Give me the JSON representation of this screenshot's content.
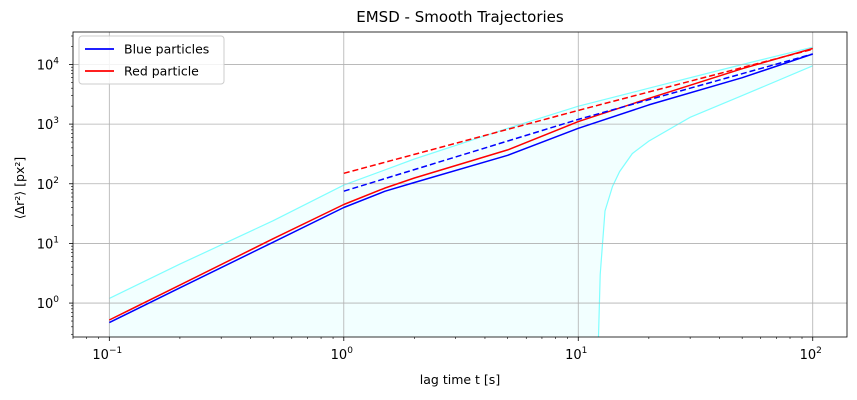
{
  "chart_data": {
    "type": "line",
    "title": "EMSD - Smooth Trajectories",
    "xlabel": "lag time t [s]",
    "ylabel": "⟨Δr²⟩ [px²]",
    "xscale": "log",
    "yscale": "log",
    "xlim": [
      0.07,
      140
    ],
    "ylim": [
      0.27,
      35000
    ],
    "x_ticks": [
      0.1,
      1,
      10,
      100
    ],
    "x_tick_labels": [
      {
        "base": "10",
        "exp": "−1"
      },
      {
        "base": "10",
        "exp": "0"
      },
      {
        "base": "10",
        "exp": "1"
      },
      {
        "base": "10",
        "exp": "2"
      }
    ],
    "y_ticks": [
      1,
      10,
      100,
      1000,
      10000
    ],
    "y_tick_labels": [
      {
        "base": "10",
        "exp": "0"
      },
      {
        "base": "10",
        "exp": "1"
      },
      {
        "base": "10",
        "exp": "2"
      },
      {
        "base": "10",
        "exp": "3"
      },
      {
        "base": "10",
        "exp": "4"
      }
    ],
    "grid": true,
    "legend_position": "top-left",
    "colors": {
      "blue": "#0000ff",
      "red": "#ff0000",
      "band": "#7fffff",
      "band_fill": "#f2ffff",
      "grid": "#b0b0b0"
    },
    "series": [
      {
        "name": "Blue particles",
        "color": "#0000ff",
        "style": "solid",
        "x": [
          0.1,
          0.2,
          0.5,
          1,
          1.5,
          2,
          5,
          10,
          20,
          50,
          100
        ],
        "y": [
          0.47,
          1.8,
          10.5,
          40,
          75,
          105,
          300,
          850,
          2100,
          6000,
          15000
        ]
      },
      {
        "name": "Red particle",
        "color": "#ff0000",
        "style": "solid",
        "x": [
          0.1,
          0.2,
          0.5,
          1,
          1.5,
          2,
          5,
          10,
          20,
          50,
          100
        ],
        "y": [
          0.52,
          2.0,
          12,
          45,
          85,
          125,
          370,
          1100,
          2700,
          8500,
          18500
        ]
      },
      {
        "color": "#0000ff",
        "style": "dashed",
        "x": [
          1,
          10,
          100
        ],
        "y": [
          75,
          1200,
          15000
        ]
      },
      {
        "color": "#ff0000",
        "style": "dashed",
        "x": [
          1,
          10,
          100
        ],
        "y": [
          150,
          1700,
          18000
        ]
      }
    ],
    "band": {
      "color": "#7fffff",
      "fill": "#f2ffff",
      "upper": {
        "x": [
          0.1,
          0.2,
          0.5,
          1,
          2,
          5,
          10,
          20,
          50,
          100
        ],
        "y": [
          1.2,
          4.5,
          24,
          95,
          260,
          850,
          2000,
          4000,
          10000,
          19500
        ]
      },
      "lower": {
        "x": [
          12.2,
          12.4,
          13,
          14,
          15,
          17,
          20,
          30,
          50,
          100
        ],
        "y": [
          0.27,
          3,
          35,
          90,
          160,
          320,
          520,
          1300,
          3000,
          9500
        ]
      }
    },
    "legend": [
      {
        "label": "Blue particles",
        "color": "#0000ff"
      },
      {
        "label": "Red particle",
        "color": "#ff0000"
      }
    ]
  }
}
